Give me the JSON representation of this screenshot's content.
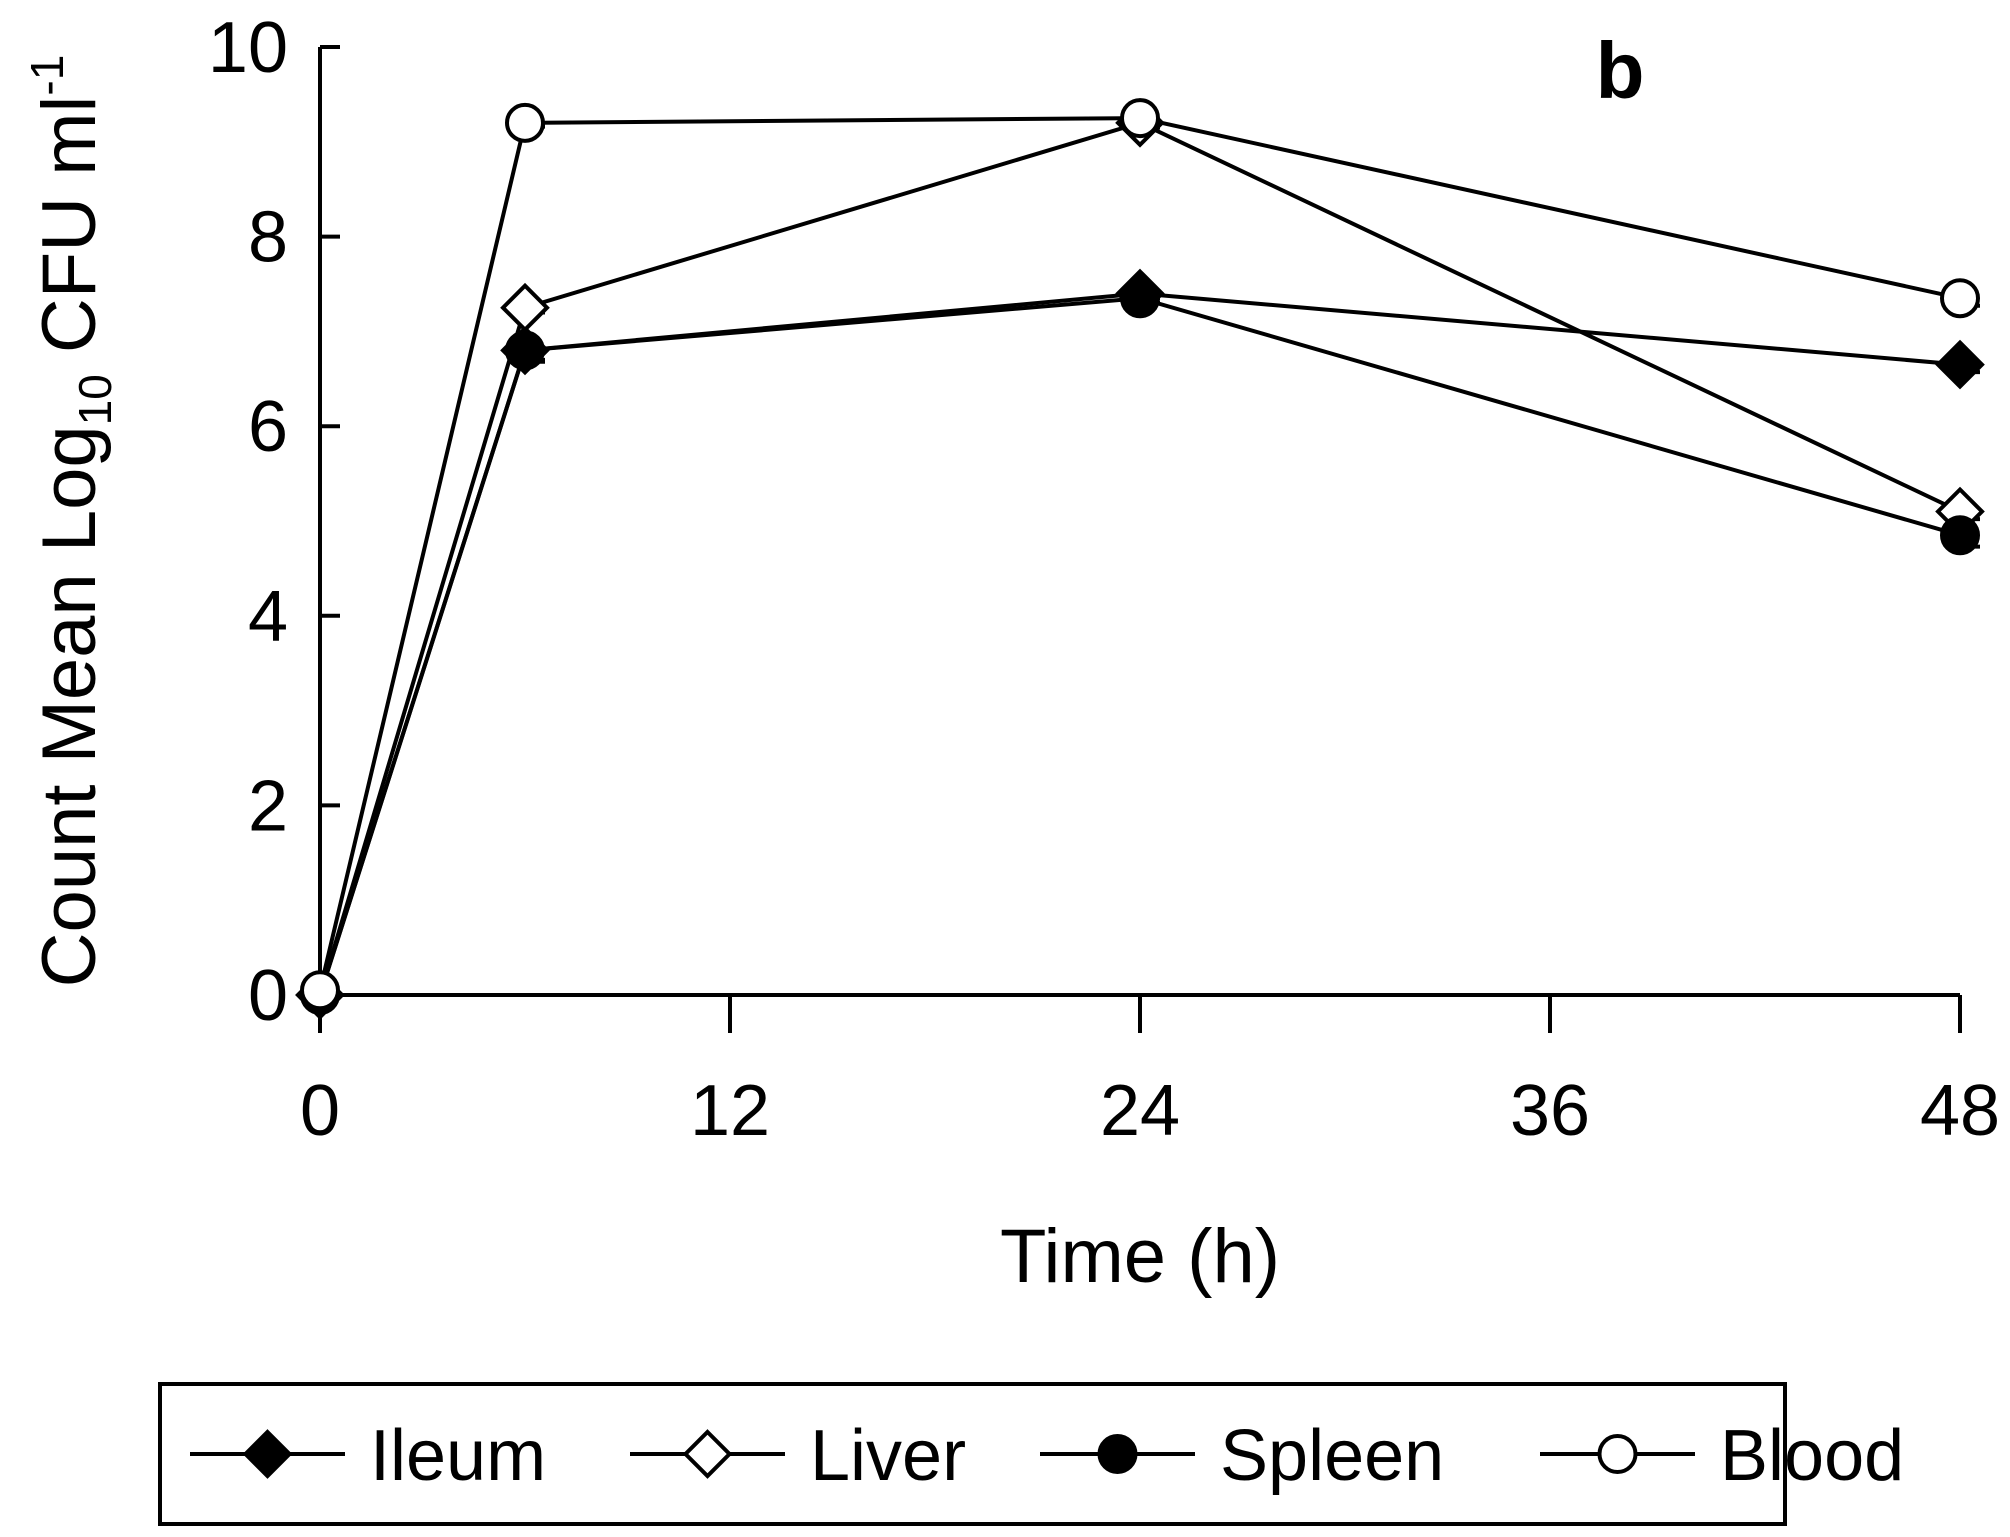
{
  "chart_data": {
    "type": "line",
    "panel_label": "b",
    "xlabel": "Time (h)",
    "ylabel": {
      "main": "Count Mean Log",
      "subscript": "10",
      "unit": " CFU ml",
      "superscript": "-1"
    },
    "xlim": [
      0,
      48
    ],
    "ylim": [
      0,
      10
    ],
    "xticks": [
      "0",
      "12",
      "24",
      "36",
      "48"
    ],
    "yticks": [
      "0",
      "2",
      "4",
      "6",
      "8",
      "10"
    ],
    "x": [
      0,
      6,
      24,
      48
    ],
    "series": [
      {
        "name": "Ileum",
        "marker": "diamond-filled",
        "values": [
          0.0,
          6.8,
          7.4,
          6.65
        ],
        "errors": [
          0,
          0.12,
          0.05,
          0.08
        ]
      },
      {
        "name": "Liver",
        "marker": "diamond-open",
        "values": [
          0.0,
          7.25,
          9.2,
          5.1
        ],
        "errors": [
          0,
          0.05,
          0.05,
          0.08
        ]
      },
      {
        "name": "Spleen",
        "marker": "circle-filled",
        "values": [
          0.0,
          6.8,
          7.35,
          4.85
        ],
        "errors": [
          0,
          0.1,
          0.05,
          0.12
        ]
      },
      {
        "name": "Blood",
        "marker": "circle-open",
        "values": [
          0.05,
          9.2,
          9.25,
          7.35
        ],
        "errors": [
          0,
          0.04,
          0.04,
          0.08
        ]
      }
    ],
    "legend_position": "bottom",
    "grid": false
  }
}
